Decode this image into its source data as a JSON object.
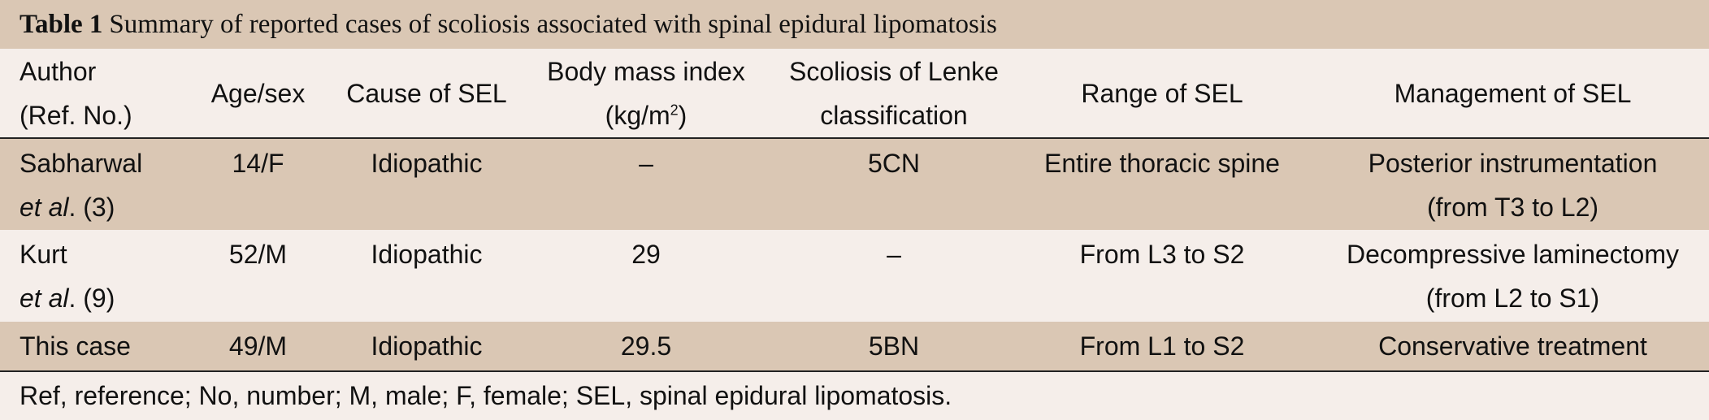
{
  "header": {
    "label": "Table 1",
    "title": "Summary of reported cases of scoliosis associated with spinal epidural lipomatosis"
  },
  "table": {
    "columns": [
      [
        "Author",
        "(Ref. No.)"
      ],
      [
        "Age/sex"
      ],
      [
        "Cause of SEL"
      ],
      {
        "text": "Body mass index",
        "unit": "(kg/m",
        "sup": "2",
        "tail": ")"
      },
      [
        "Scoliosis of Lenke",
        "classification"
      ],
      [
        "Range of SEL"
      ],
      [
        "Management of SEL"
      ]
    ],
    "rows": [
      [
        {
          "name": "Sabharwal",
          "italic": "et al",
          "ref": ". (3)"
        },
        "14/F",
        "Idiopathic",
        "–",
        "5CN",
        "Entire thoracic spine",
        [
          "Posterior instrumentation",
          "(from T3 to L2)"
        ]
      ],
      [
        {
          "name": "Kurt",
          "italic": "et al",
          "ref": ". (9)"
        },
        "52/M",
        "Idiopathic",
        "29",
        "–",
        "From L3 to S2",
        [
          "Decompressive laminectomy",
          "(from L2 to S1)"
        ]
      ],
      [
        {
          "name": "This case"
        },
        "49/M",
        "Idiopathic",
        "29.5",
        "5BN",
        "From L1 to S2",
        [
          "Conservative treatment"
        ]
      ]
    ]
  },
  "footnote": "Ref, reference; No, number; M, male; F, female; SEL, spinal epidural lipomatosis."
}
